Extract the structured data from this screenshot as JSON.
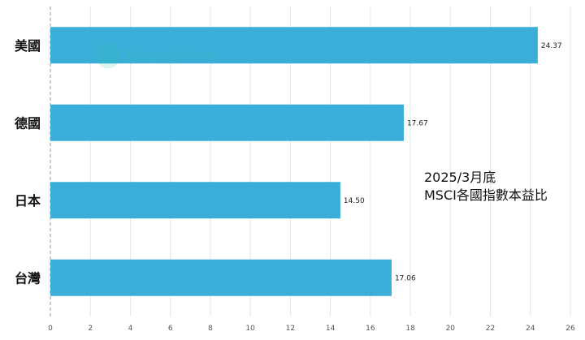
{
  "chart_data": {
    "type": "bar",
    "orientation": "horizontal",
    "categories": [
      "美國",
      "德國",
      "日本",
      "台灣"
    ],
    "values": [
      24.37,
      17.67,
      14.5,
      17.06
    ],
    "value_labels": [
      "24.37",
      "17.67",
      "14.50",
      "17.06"
    ],
    "xlim": [
      0,
      26
    ],
    "xticks": [
      "0",
      "2",
      "4",
      "6",
      "8",
      "10",
      "12",
      "14",
      "16",
      "18",
      "20",
      "22",
      "24",
      "26"
    ],
    "grid": true,
    "bar_color": "#3aaed8",
    "annotation_lines": [
      "2025/3月底",
      "MSCI各國指數本益比"
    ]
  },
  "watermark": {
    "text": "MacroMicro"
  }
}
